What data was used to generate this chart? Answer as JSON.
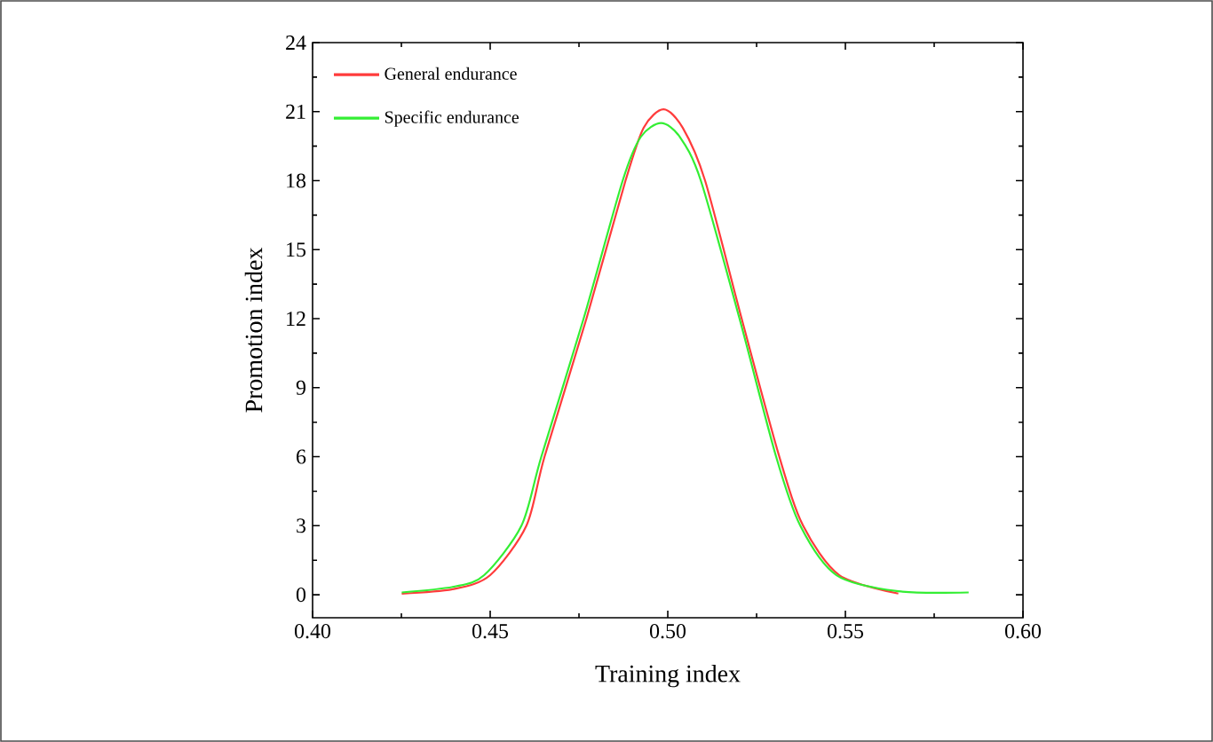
{
  "chart_data": {
    "type": "line",
    "xlabel": "Training index",
    "ylabel": "Promotion index",
    "xlim": [
      0.4,
      0.6
    ],
    "ylim": [
      -1,
      24
    ],
    "xticks": [
      {
        "value": 0.4,
        "label": "0.40"
      },
      {
        "value": 0.45,
        "label": "0.45"
      },
      {
        "value": 0.5,
        "label": "0.50"
      },
      {
        "value": 0.55,
        "label": "0.55"
      },
      {
        "value": 0.6,
        "label": "0.60"
      }
    ],
    "yticks": [
      0,
      3,
      6,
      9,
      12,
      15,
      18,
      21,
      24
    ],
    "legend": "top left",
    "grid": false,
    "marker": "none",
    "line_style": "solid",
    "series": [
      {
        "name": "General endurance",
        "color": "#ff3b3b",
        "x": [
          0.4251,
          0.4398,
          0.45,
          0.4602,
          0.4653,
          0.4771,
          0.4881,
          0.4932,
          0.4988,
          0.5042,
          0.5105,
          0.5208,
          0.5314,
          0.5381,
          0.5483,
          0.5649
        ],
        "values": [
          0.05,
          0.25,
          0.85,
          3,
          6,
          12,
          18,
          20.3,
          21.1,
          20.3,
          18,
          12,
          6,
          3,
          0.85,
          0.05
        ]
      },
      {
        "name": "Specific endurance",
        "color": "#33ee33",
        "x": [
          0.4251,
          0.4398,
          0.4483,
          0.4588,
          0.4644,
          0.4763,
          0.4873,
          0.4924,
          0.4981,
          0.5034,
          0.5093,
          0.5202,
          0.5305,
          0.5373,
          0.5475,
          0.5649,
          0.5847
        ],
        "values": [
          0.1,
          0.35,
          0.85,
          3,
          6,
          12,
          18,
          19.9,
          20.5,
          19.9,
          18,
          12,
          6,
          3,
          0.85,
          0.15,
          0.1
        ]
      }
    ]
  }
}
